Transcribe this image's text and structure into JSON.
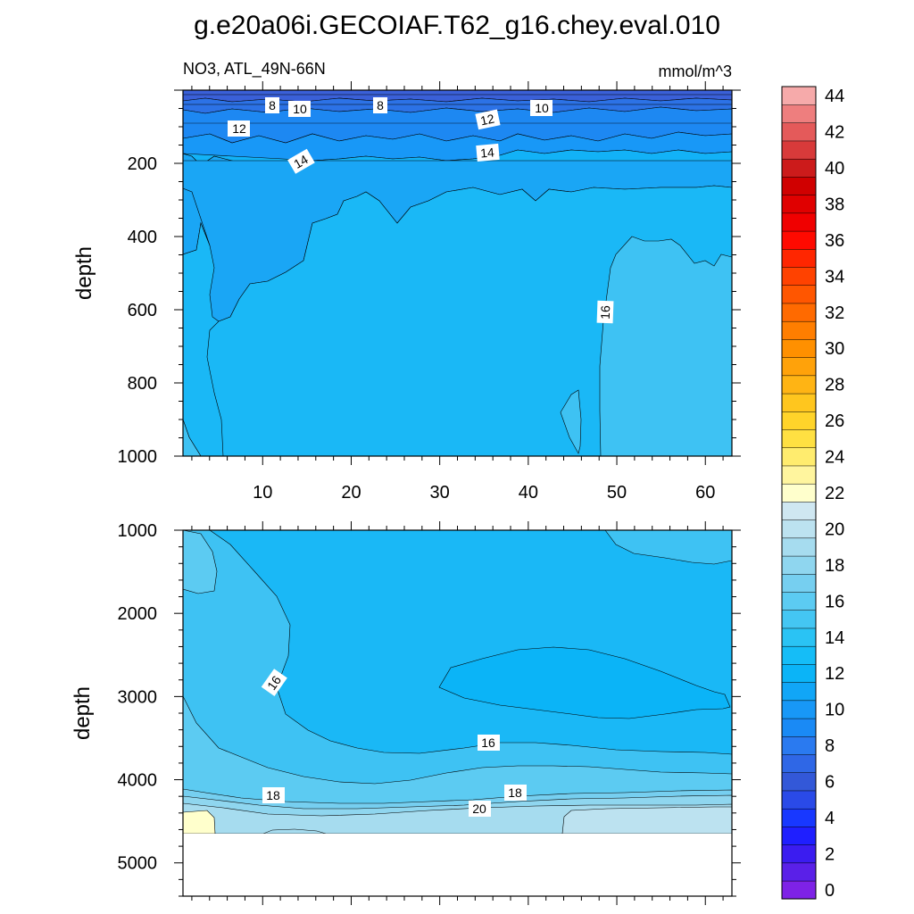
{
  "title": "g.e20a06i.GECOIAF.T62_g16.chey.eval.010",
  "subtitle_left": "NO3, ATL_49N-66N",
  "subtitle_right": "mmol/m^3",
  "chart_data": [
    {
      "type": "contour",
      "panel": "upper",
      "ylabel": "depth",
      "xlim": [
        1,
        63
      ],
      "ylim": [
        0,
        1000
      ],
      "y_inverted": true,
      "xticks": [
        10,
        20,
        30,
        40,
        50,
        60
      ],
      "yticks": [
        200,
        400,
        600,
        800,
        1000
      ],
      "contour_labels": [
        {
          "text": "8",
          "x": 11,
          "y": 35
        },
        {
          "text": "10",
          "x": 14,
          "y": 48
        },
        {
          "text": "8",
          "x": 23,
          "y": 38
        },
        {
          "text": "10",
          "x": 42,
          "y": 45
        },
        {
          "text": "12",
          "x": 7,
          "y": 100
        },
        {
          "text": "12",
          "x": 36,
          "y": 80
        },
        {
          "text": "14",
          "x": 14,
          "y": 198
        },
        {
          "text": "14",
          "x": 36,
          "y": 160
        },
        {
          "text": "16",
          "x": 49,
          "y": 605
        }
      ],
      "levels_present": [
        6,
        8,
        10,
        12,
        14,
        16
      ]
    },
    {
      "type": "contour",
      "panel": "lower",
      "ylabel": "depth",
      "xlim": [
        1,
        63
      ],
      "ylim": [
        1000,
        5400
      ],
      "y_inverted": true,
      "yticks": [
        1000,
        2000,
        3000,
        4000,
        5000
      ],
      "data_bottom_depth": 4650,
      "contour_labels": [
        {
          "text": "16",
          "x": 11,
          "y": 2880
        },
        {
          "text": "16",
          "x": 35,
          "y": 3540
        },
        {
          "text": "18",
          "x": 11,
          "y": 4170
        },
        {
          "text": "18",
          "x": 38,
          "y": 4150
        },
        {
          "text": "20",
          "x": 34,
          "y": 4330
        }
      ],
      "levels_present": [
        14,
        16,
        18,
        20,
        22
      ]
    }
  ],
  "colorbar": {
    "labels": [
      "0",
      "2",
      "4",
      "6",
      "8",
      "10",
      "12",
      "14",
      "16",
      "18",
      "20",
      "22",
      "24",
      "26",
      "28",
      "30",
      "32",
      "34",
      "36",
      "38",
      "40",
      "42",
      "44"
    ],
    "colors": [
      "#7e22e6",
      "#5a20e8",
      "#3b1cf0",
      "#1f1fff",
      "#1838ff",
      "#2a4ae8",
      "#3358d8",
      "#2f67e6",
      "#2a7af0",
      "#1a8af5",
      "#1898f7",
      "#11a6f7",
      "#0bb4f7",
      "#15bdf7",
      "#2ac3f4",
      "#44c6f3",
      "#5ccbf2",
      "#76cff0",
      "#8fd6ef",
      "#a6dcef",
      "#bce2f0",
      "#cfe7f1",
      "#ffffcc",
      "#fff59e",
      "#ffec6e",
      "#ffe042",
      "#ffd42a",
      "#ffc61e",
      "#ffb414",
      "#ffa20a",
      "#ff9000",
      "#ff7e00",
      "#ff6a00",
      "#ff5600",
      "#ff4200",
      "#ff2600",
      "#ff0a00",
      "#f00000",
      "#e00000",
      "#d00000",
      "#cc1b1b",
      "#d83a3a",
      "#e45a5a",
      "#ee7e7e",
      "#f6aaaa"
    ]
  }
}
